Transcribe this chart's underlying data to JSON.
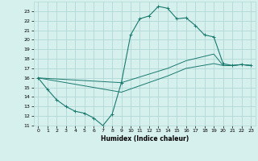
{
  "xlabel": "Humidex (Indice chaleur)",
  "bg_color": "#d6f0ee",
  "grid_color": "#b0d8d4",
  "line_color": "#1a7a6e",
  "xlim": [
    -0.5,
    23.5
  ],
  "ylim": [
    11,
    24
  ],
  "xticks": [
    0,
    1,
    2,
    3,
    4,
    5,
    6,
    7,
    8,
    9,
    10,
    11,
    12,
    13,
    14,
    15,
    16,
    17,
    18,
    19,
    20,
    21,
    22,
    23
  ],
  "yticks": [
    11,
    12,
    13,
    14,
    15,
    16,
    17,
    18,
    19,
    20,
    21,
    22,
    23
  ],
  "line1_x": [
    0,
    1,
    2,
    3,
    4,
    5,
    6,
    7,
    8,
    9,
    10,
    11,
    12,
    13,
    14,
    15,
    16,
    17,
    18,
    19,
    20,
    21,
    22,
    23
  ],
  "line1_y": [
    16.0,
    14.8,
    13.7,
    13.0,
    12.5,
    12.3,
    11.8,
    11.0,
    12.2,
    15.5,
    20.5,
    22.2,
    22.5,
    23.5,
    23.3,
    22.2,
    22.3,
    21.5,
    20.5,
    20.3,
    17.5,
    17.3,
    17.4,
    17.3
  ],
  "line2_x": [
    0,
    9,
    14,
    15,
    16,
    19,
    20,
    21,
    22,
    23
  ],
  "line2_y": [
    16.0,
    15.5,
    17.0,
    17.4,
    17.8,
    18.5,
    17.3,
    17.3,
    17.4,
    17.3
  ],
  "line3_x": [
    0,
    9,
    14,
    15,
    16,
    19,
    20,
    21,
    22,
    23
  ],
  "line3_y": [
    16.0,
    14.5,
    16.2,
    16.6,
    17.0,
    17.5,
    17.3,
    17.3,
    17.4,
    17.3
  ]
}
